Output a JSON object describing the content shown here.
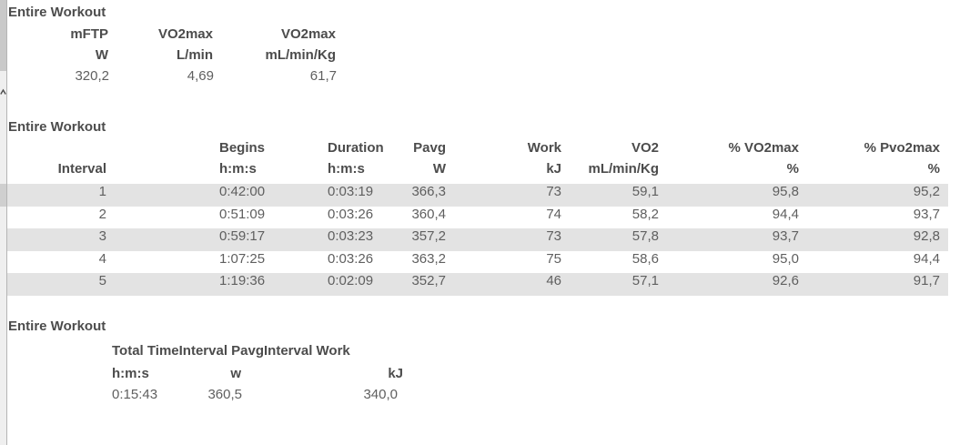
{
  "app": {
    "background_color": "#ffffff",
    "row_stripe_color": "#e3e3e3",
    "header_text_color": "#4c4c4c",
    "value_text_color": "#5f5f5f",
    "scrollbar_track_color": "#efefef",
    "scrollbar_thumb_color": "#c9c9c9"
  },
  "summary_top": {
    "title": "Entire Workout",
    "columns": [
      {
        "label": "mFTP",
        "unit": "W",
        "value": "320,2"
      },
      {
        "label": "VO2max",
        "unit": "L/min",
        "value": "4,69"
      },
      {
        "label": "VO2max",
        "unit": "mL/min/Kg",
        "value": "61,7"
      }
    ]
  },
  "intervals": {
    "title": "Entire Workout",
    "header_row1": [
      "",
      "Begins",
      "Duration",
      "Pavg",
      "Work",
      "VO2",
      "% VO2max",
      "% Pvo2max"
    ],
    "header_row2": [
      "Interval",
      "h:m:s",
      "h:m:s",
      "W",
      "kJ",
      "mL/min/Kg",
      "%",
      "%"
    ],
    "rows": [
      [
        "1",
        "0:42:00",
        "0:03:19",
        "366,3",
        "73",
        "59,1",
        "95,8",
        "95,2"
      ],
      [
        "2",
        "0:51:09",
        "0:03:26",
        "360,4",
        "74",
        "58,2",
        "94,4",
        "93,7"
      ],
      [
        "3",
        "0:59:17",
        "0:03:23",
        "357,2",
        "73",
        "57,8",
        "93,7",
        "92,8"
      ],
      [
        "4",
        "1:07:25",
        "0:03:26",
        "363,2",
        "75",
        "58,6",
        "95,0",
        "94,4"
      ],
      [
        "5",
        "1:19:36",
        "0:02:09",
        "352,7",
        "46",
        "57,1",
        "92,6",
        "91,7"
      ]
    ]
  },
  "summary_bottom": {
    "title": "Entire Workout",
    "headers": [
      "Total Time",
      "Interval Pavg",
      "Interval Work"
    ],
    "units": [
      "h:m:s",
      "w",
      "kJ"
    ],
    "values": [
      "0:15:43",
      "360,5",
      "340,0"
    ]
  },
  "scrollbar": {
    "icon": "chevron-up"
  }
}
